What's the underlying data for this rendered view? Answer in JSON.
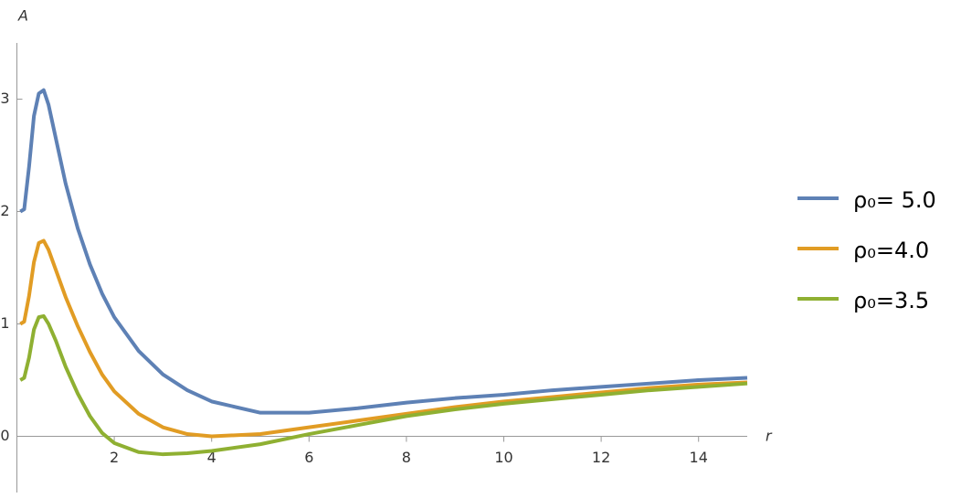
{
  "chart_data": {
    "type": "line",
    "x_label": "r",
    "y_label": "A",
    "x": [
      0.07,
      0.15,
      0.25,
      0.35,
      0.45,
      0.55,
      0.65,
      0.8,
      1,
      1.25,
      1.5,
      1.75,
      2,
      2.5,
      3,
      3.5,
      4,
      5,
      6,
      7,
      8,
      9,
      10,
      11,
      12,
      13,
      14,
      15
    ],
    "series": [
      {
        "name": "ρ₀= 5.0",
        "color": "#5e81b5",
        "values": [
          2.0,
          2.02,
          2.4,
          2.85,
          3.05,
          3.08,
          2.95,
          2.65,
          2.25,
          1.85,
          1.53,
          1.27,
          1.06,
          0.76,
          0.55,
          0.41,
          0.31,
          0.21,
          0.21,
          0.25,
          0.3,
          0.34,
          0.37,
          0.41,
          0.44,
          0.47,
          0.5,
          0.52
        ]
      },
      {
        "name": "ρ₀=4.0",
        "color": "#e19c24",
        "values": [
          1.0,
          1.02,
          1.25,
          1.55,
          1.72,
          1.74,
          1.66,
          1.48,
          1.24,
          0.98,
          0.75,
          0.55,
          0.4,
          0.2,
          0.08,
          0.02,
          0.0,
          0.02,
          0.08,
          0.14,
          0.2,
          0.26,
          0.31,
          0.35,
          0.39,
          0.43,
          0.46,
          0.48
        ]
      },
      {
        "name": "ρ₀=3.5",
        "color": "#8fb032",
        "values": [
          0.5,
          0.52,
          0.7,
          0.95,
          1.06,
          1.07,
          1.0,
          0.85,
          0.62,
          0.38,
          0.18,
          0.03,
          -0.06,
          -0.14,
          -0.16,
          -0.15,
          -0.13,
          -0.07,
          0.02,
          0.1,
          0.18,
          0.24,
          0.29,
          0.33,
          0.37,
          0.41,
          0.44,
          0.47
        ]
      }
    ],
    "xlim": [
      0,
      15
    ],
    "ylim": [
      -0.5,
      3.5
    ],
    "xticks": [
      2,
      4,
      6,
      8,
      10,
      12,
      14
    ],
    "yticks": [
      0,
      1,
      2,
      3
    ],
    "legend": "right"
  }
}
